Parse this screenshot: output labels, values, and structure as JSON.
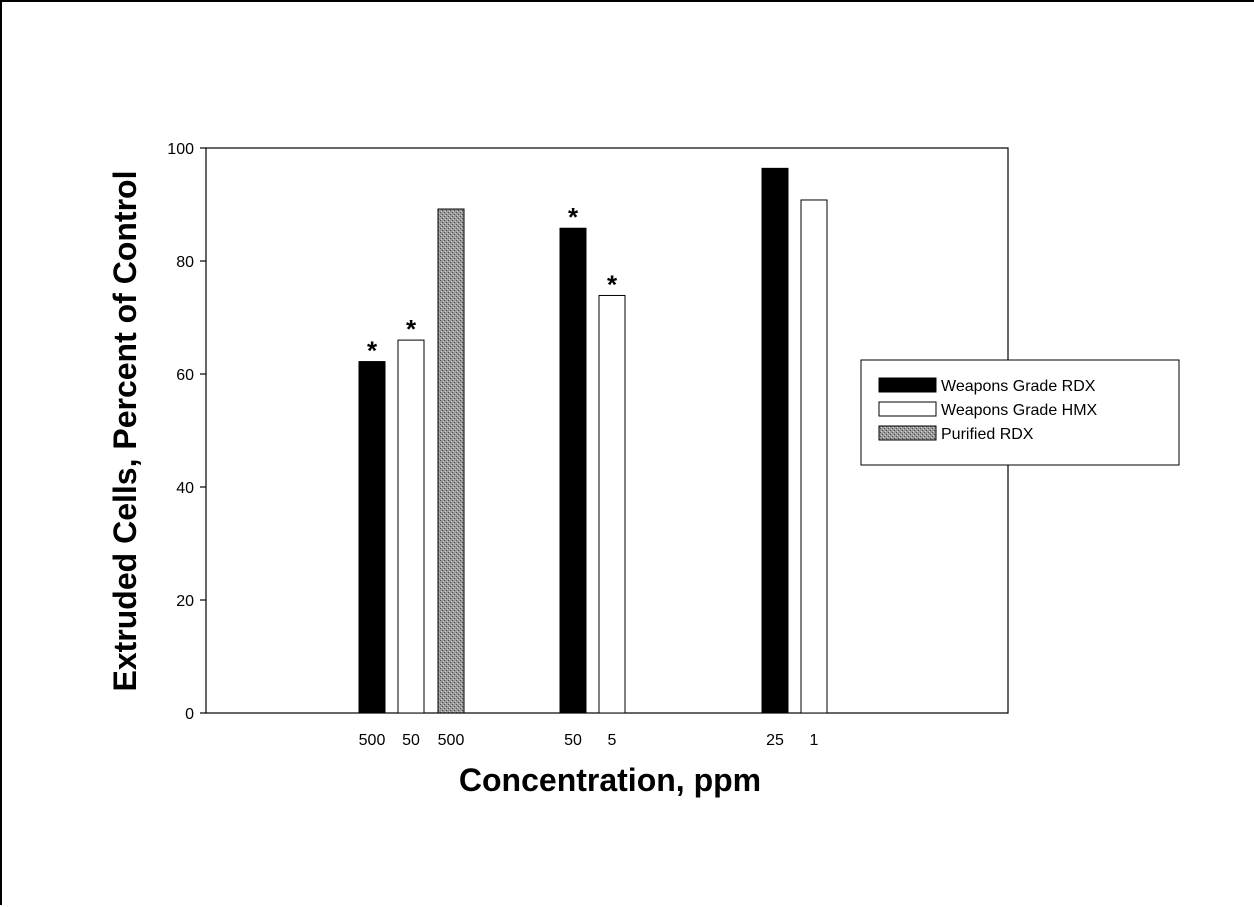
{
  "chart_data": {
    "type": "bar",
    "title": "",
    "xlabel": "Concentration, ppm",
    "ylabel": "Extruded Cells,  Percent of Control",
    "ylim": [
      0,
      100
    ],
    "yticks": [
      0,
      20,
      40,
      60,
      80,
      100
    ],
    "grid": false,
    "legend_position": "right",
    "series": [
      {
        "name": "Weapons Grade RDX",
        "color": "#000000",
        "pattern": "solid"
      },
      {
        "name": "Weapons Grade HMX",
        "color": "#ffffff",
        "pattern": "outline"
      },
      {
        "name": "Purified RDX",
        "color": "#8c8c8c",
        "pattern": "stipple"
      }
    ],
    "bars": [
      {
        "label": "500",
        "series": "Weapons Grade RDX",
        "value": 62.2,
        "significant": true
      },
      {
        "label": "50",
        "series": "Weapons Grade HMX",
        "value": 66.0,
        "significant": true
      },
      {
        "label": "500",
        "series": "Purified RDX",
        "value": 89.2,
        "significant": false
      },
      {
        "label": "50",
        "series": "Weapons Grade RDX",
        "value": 85.8,
        "significant": true
      },
      {
        "label": "5",
        "series": "Weapons Grade HMX",
        "value": 73.9,
        "significant": true
      },
      {
        "label": "25",
        "series": "Weapons Grade RDX",
        "value": 96.4,
        "significant": false
      },
      {
        "label": "1",
        "series": "Weapons Grade HMX",
        "value": 90.8,
        "significant": false
      }
    ],
    "significance_marker": "*"
  }
}
